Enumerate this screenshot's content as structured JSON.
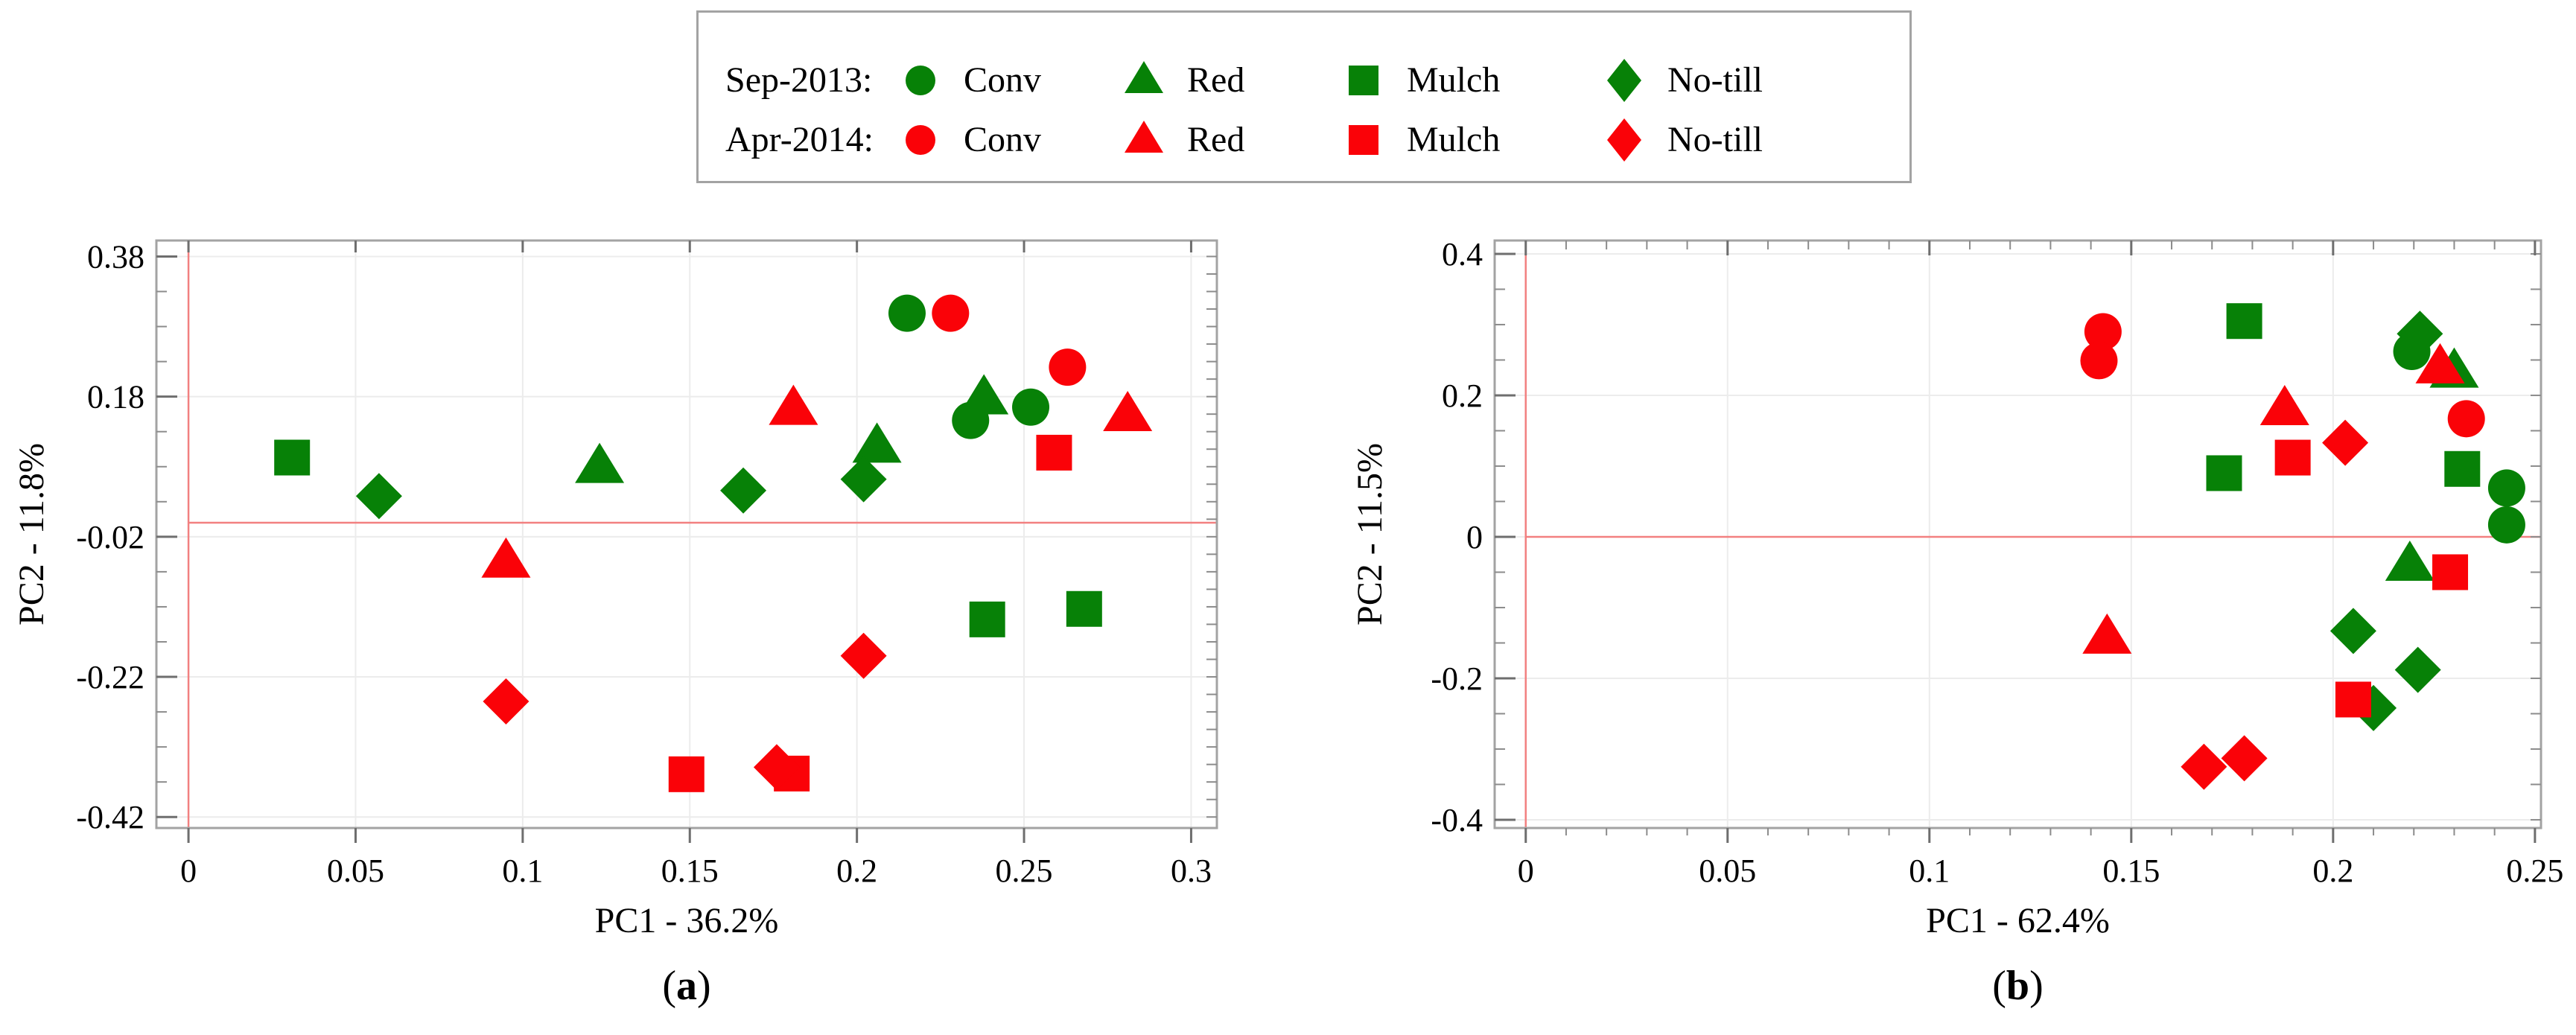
{
  "figure": {
    "background": "#ffffff",
    "colors": {
      "green": "#078107",
      "red": "#fa0208",
      "zero_line": "#f28080",
      "grid": "#ececec",
      "frame": "#a3a3a3",
      "major_tick": "#6e6e6e",
      "minor_tick": "#8c8c8c",
      "text": "#000000",
      "legend_border": "#a3a3a3"
    },
    "legend": {
      "rows": [
        {
          "label": "Sep-2013:",
          "color": "green",
          "items": [
            {
              "marker": "circle",
              "label": "Conv"
            },
            {
              "marker": "triangle",
              "label": "Red"
            },
            {
              "marker": "square",
              "label": "Mulch"
            },
            {
              "marker": "diamond",
              "label": "No-till"
            }
          ]
        },
        {
          "label": "Apr-2014:",
          "color": "red",
          "items": [
            {
              "marker": "circle",
              "label": "Conv"
            },
            {
              "marker": "triangle",
              "label": "Red"
            },
            {
              "marker": "square",
              "label": "Mulch"
            },
            {
              "marker": "diamond",
              "label": "No-till"
            }
          ]
        }
      ]
    }
  },
  "chart_data": [
    {
      "id": "a",
      "type": "scatter",
      "caption": "(a)",
      "xlabel": "PC1 - 36.2%",
      "ylabel": "PC2 - 11.8%",
      "xlim": [
        -0.0096,
        0.3077
      ],
      "ylim": [
        -0.4357,
        0.4028
      ],
      "x_ticks": [
        0,
        0.05,
        0.1,
        0.15,
        0.2,
        0.25,
        0.3
      ],
      "x_tick_labels": [
        "0",
        "0.05",
        "0.1",
        "0.15",
        "0.2",
        "0.25",
        "0.3"
      ],
      "y_ticks": [
        0.38,
        0.18,
        -0.02,
        -0.22,
        -0.42
      ],
      "y_tick_labels": [
        "0.38",
        "0.18",
        "-0.02",
        "-0.22",
        "-0.42"
      ],
      "y_minor_step": 0.05,
      "right_tick_step": 0.025,
      "top_tick_step": null,
      "bottom_minor_step": null,
      "grid": true,
      "zero_lines": true,
      "series": [
        {
          "season": "Sep-2013",
          "treatment": "Conv",
          "marker": "circle",
          "color": "green",
          "points": [
            [
              0.215,
              0.299
            ],
            [
              0.234,
              0.146
            ],
            [
              0.252,
              0.165
            ]
          ]
        },
        {
          "season": "Sep-2013",
          "treatment": "Red",
          "marker": "triangle",
          "color": "green",
          "points": [
            [
              0.123,
              0.079
            ],
            [
              0.206,
              0.108
            ],
            [
              0.238,
              0.177
            ]
          ]
        },
        {
          "season": "Sep-2013",
          "treatment": "Mulch",
          "marker": "square",
          "color": "green",
          "points": [
            [
              0.031,
              0.093
            ],
            [
              0.239,
              -0.138
            ],
            [
              0.268,
              -0.123
            ]
          ]
        },
        {
          "season": "Sep-2013",
          "treatment": "No-till",
          "marker": "diamond",
          "color": "green",
          "points": [
            [
              0.057,
              0.038
            ],
            [
              0.166,
              0.046
            ],
            [
              0.202,
              0.062
            ]
          ]
        },
        {
          "season": "Apr-2014",
          "treatment": "Conv",
          "marker": "circle",
          "color": "red",
          "points": [
            [
              0.228,
              0.299
            ],
            [
              0.263,
              0.222
            ]
          ]
        },
        {
          "season": "Apr-2014",
          "treatment": "Red",
          "marker": "triangle",
          "color": "red",
          "points": [
            [
              0.095,
              -0.056
            ],
            [
              0.181,
              0.162
            ],
            [
              0.281,
              0.153
            ]
          ]
        },
        {
          "season": "Apr-2014",
          "treatment": "Mulch",
          "marker": "square",
          "color": "red",
          "points": [
            [
              0.149,
              -0.359
            ],
            [
              0.1805,
              -0.358
            ],
            [
              0.259,
              0.1
            ]
          ]
        },
        {
          "season": "Apr-2014",
          "treatment": "No-till",
          "marker": "diamond",
          "color": "red",
          "points": [
            [
              0.095,
              -0.255
            ],
            [
              0.176,
              -0.349
            ],
            [
              0.202,
              -0.19
            ]
          ]
        }
      ]
    },
    {
      "id": "b",
      "type": "scatter",
      "caption": "(b)",
      "xlabel": "PC1 - 62.4%",
      "ylabel": "PC2 - 11.5%",
      "xlim": [
        -0.0077,
        0.2515
      ],
      "ylim": [
        -0.4116,
        0.4189
      ],
      "x_ticks": [
        0,
        0.05,
        0.1,
        0.15,
        0.2,
        0.25
      ],
      "x_tick_labels": [
        "0",
        "0.05",
        "0.1",
        "0.15",
        "0.2",
        "0.25"
      ],
      "y_ticks": [
        0.4,
        0.2,
        0,
        -0.2,
        -0.4
      ],
      "y_tick_labels": [
        "0.4",
        "0.2",
        "0",
        "-0.2",
        "-0.4"
      ],
      "y_minor_step": 0.05,
      "right_tick_step": 0.05,
      "top_tick_step": 0.01,
      "bottom_minor_step": 0.01,
      "grid": true,
      "zero_lines": true,
      "series": [
        {
          "season": "Sep-2013",
          "treatment": "Conv",
          "marker": "circle",
          "color": "green",
          "points": [
            [
              0.2195,
              0.262
            ],
            [
              0.243,
              0.069
            ],
            [
              0.243,
              0.017
            ]
          ]
        },
        {
          "season": "Sep-2013",
          "treatment": "Red",
          "marker": "triangle",
          "color": "green",
          "points": [
            [
              0.23,
              0.233
            ],
            [
              0.219,
              -0.04
            ]
          ]
        },
        {
          "season": "Sep-2013",
          "treatment": "Mulch",
          "marker": "square",
          "color": "green",
          "points": [
            [
              0.178,
              0.305
            ],
            [
              0.173,
              0.09
            ],
            [
              0.232,
              0.096
            ]
          ]
        },
        {
          "season": "Sep-2013",
          "treatment": "No-till",
          "marker": "diamond",
          "color": "green",
          "points": [
            [
              0.2215,
              0.287
            ],
            [
              0.205,
              -0.133
            ],
            [
              0.221,
              -0.188
            ],
            [
              0.21,
              -0.242
            ]
          ]
        },
        {
          "season": "Apr-2014",
          "treatment": "Conv",
          "marker": "circle",
          "color": "red",
          "points": [
            [
              0.143,
              0.29
            ],
            [
              0.142,
              0.249
            ],
            [
              0.233,
              0.167
            ]
          ]
        },
        {
          "season": "Apr-2014",
          "treatment": "Red",
          "marker": "triangle",
          "color": "red",
          "points": [
            [
              0.144,
              -0.143
            ],
            [
              0.188,
              0.18
            ],
            [
              0.2265,
              0.239
            ]
          ]
        },
        {
          "season": "Apr-2014",
          "treatment": "Mulch",
          "marker": "square",
          "color": "red",
          "points": [
            [
              0.19,
              0.112
            ],
            [
              0.229,
              -0.05
            ],
            [
              0.205,
              -0.23
            ]
          ]
        },
        {
          "season": "Apr-2014",
          "treatment": "No-till",
          "marker": "diamond",
          "color": "red",
          "points": [
            [
              0.203,
              0.133
            ],
            [
              0.168,
              -0.325
            ],
            [
              0.178,
              -0.313
            ]
          ]
        }
      ]
    }
  ]
}
